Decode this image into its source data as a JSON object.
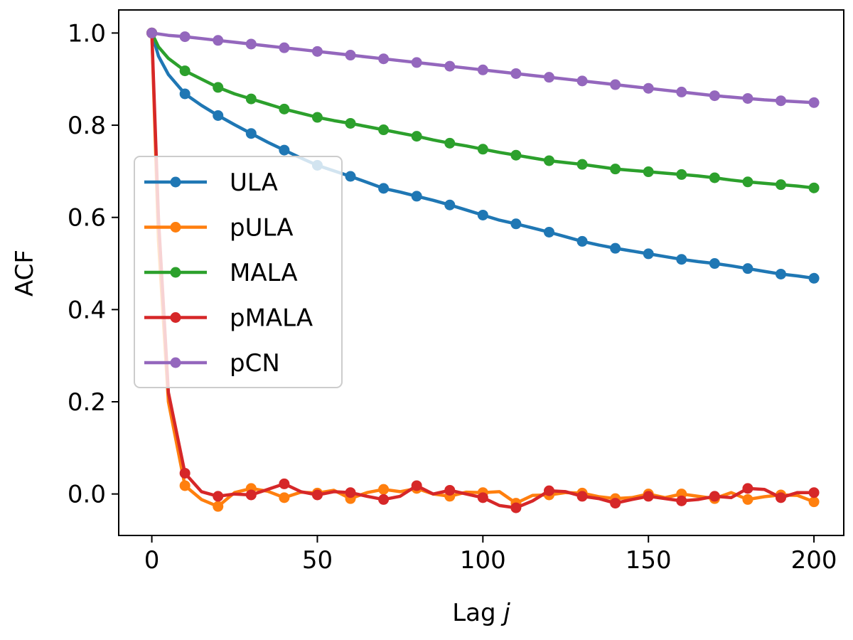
{
  "chart_data": {
    "type": "line",
    "title": "",
    "xlabel": "Lag ",
    "xlabel_italic": "j",
    "ylabel": "ACF",
    "xlim": [
      -10,
      209
    ],
    "ylim": [
      -0.09,
      1.05
    ],
    "xticks": [
      0,
      50,
      100,
      150,
      200
    ],
    "xtick_labels": [
      "0",
      "50",
      "100",
      "150",
      "200"
    ],
    "yticks": [
      0.0,
      0.2,
      0.4,
      0.6,
      0.8,
      1.0
    ],
    "ytick_labels": [
      "0.0",
      "0.2",
      "0.4",
      "0.6",
      "0.8",
      "1.0"
    ],
    "grid": false,
    "legend_position": "center-left",
    "marker_every": 10,
    "x": [
      0,
      2,
      5,
      10,
      15,
      20,
      25,
      30,
      35,
      40,
      45,
      50,
      55,
      60,
      65,
      70,
      75,
      80,
      85,
      90,
      95,
      100,
      105,
      110,
      115,
      120,
      125,
      130,
      135,
      140,
      145,
      150,
      155,
      160,
      165,
      170,
      175,
      180,
      185,
      190,
      195,
      200
    ],
    "series": [
      {
        "name": "ULA",
        "color": "#1f77b4",
        "values": [
          1.0,
          0.95,
          0.91,
          0.868,
          0.843,
          0.821,
          0.801,
          0.782,
          0.763,
          0.746,
          0.729,
          0.713,
          0.701,
          0.689,
          0.676,
          0.663,
          0.655,
          0.646,
          0.637,
          0.627,
          0.616,
          0.605,
          0.594,
          0.586,
          0.577,
          0.568,
          0.558,
          0.548,
          0.54,
          0.533,
          0.527,
          0.521,
          0.515,
          0.509,
          0.504,
          0.5,
          0.495,
          0.489,
          0.483,
          0.477,
          0.473,
          0.468
        ]
      },
      {
        "name": "pULA",
        "color": "#ff7f0e",
        "values": [
          1.0,
          0.55,
          0.2,
          0.018,
          -0.012,
          -0.027,
          0.003,
          0.012,
          0.006,
          -0.008,
          0.004,
          0.002,
          0.008,
          -0.01,
          0.003,
          0.01,
          0.005,
          0.012,
          0.0,
          -0.005,
          0.004,
          0.003,
          0.005,
          -0.02,
          -0.003,
          -0.002,
          0.003,
          0.002,
          -0.006,
          -0.01,
          -0.008,
          0.0,
          -0.008,
          0.0,
          -0.005,
          -0.01,
          0.003,
          -0.012,
          -0.006,
          -0.002,
          -0.003,
          -0.017
        ]
      },
      {
        "name": "MALA",
        "color": "#2ca02c",
        "values": [
          1.0,
          0.97,
          0.945,
          0.918,
          0.9,
          0.882,
          0.868,
          0.857,
          0.846,
          0.835,
          0.826,
          0.817,
          0.81,
          0.804,
          0.797,
          0.79,
          0.783,
          0.776,
          0.768,
          0.761,
          0.755,
          0.748,
          0.741,
          0.735,
          0.729,
          0.723,
          0.719,
          0.715,
          0.71,
          0.705,
          0.702,
          0.699,
          0.696,
          0.693,
          0.69,
          0.686,
          0.681,
          0.677,
          0.674,
          0.671,
          0.668,
          0.664
        ]
      },
      {
        "name": "pMALA",
        "color": "#d62728",
        "values": [
          1.0,
          0.6,
          0.22,
          0.045,
          0.005,
          -0.005,
          0.0,
          -0.002,
          0.01,
          0.022,
          0.005,
          -0.002,
          0.005,
          0.003,
          -0.005,
          -0.012,
          -0.005,
          0.018,
          0.0,
          0.008,
          0.0,
          -0.008,
          -0.025,
          -0.03,
          -0.015,
          0.007,
          0.005,
          -0.005,
          -0.01,
          -0.02,
          -0.012,
          -0.005,
          -0.01,
          -0.015,
          -0.012,
          -0.005,
          -0.008,
          0.012,
          0.01,
          -0.008,
          0.003,
          0.003
        ]
      },
      {
        "name": "pCN",
        "color": "#9467bd",
        "values": [
          1.0,
          0.998,
          0.995,
          0.992,
          0.988,
          0.984,
          0.98,
          0.976,
          0.972,
          0.968,
          0.964,
          0.96,
          0.956,
          0.952,
          0.948,
          0.944,
          0.94,
          0.936,
          0.932,
          0.928,
          0.924,
          0.92,
          0.916,
          0.912,
          0.908,
          0.904,
          0.9,
          0.896,
          0.892,
          0.888,
          0.884,
          0.88,
          0.876,
          0.872,
          0.868,
          0.864,
          0.861,
          0.858,
          0.855,
          0.853,
          0.851,
          0.849
        ]
      }
    ]
  }
}
